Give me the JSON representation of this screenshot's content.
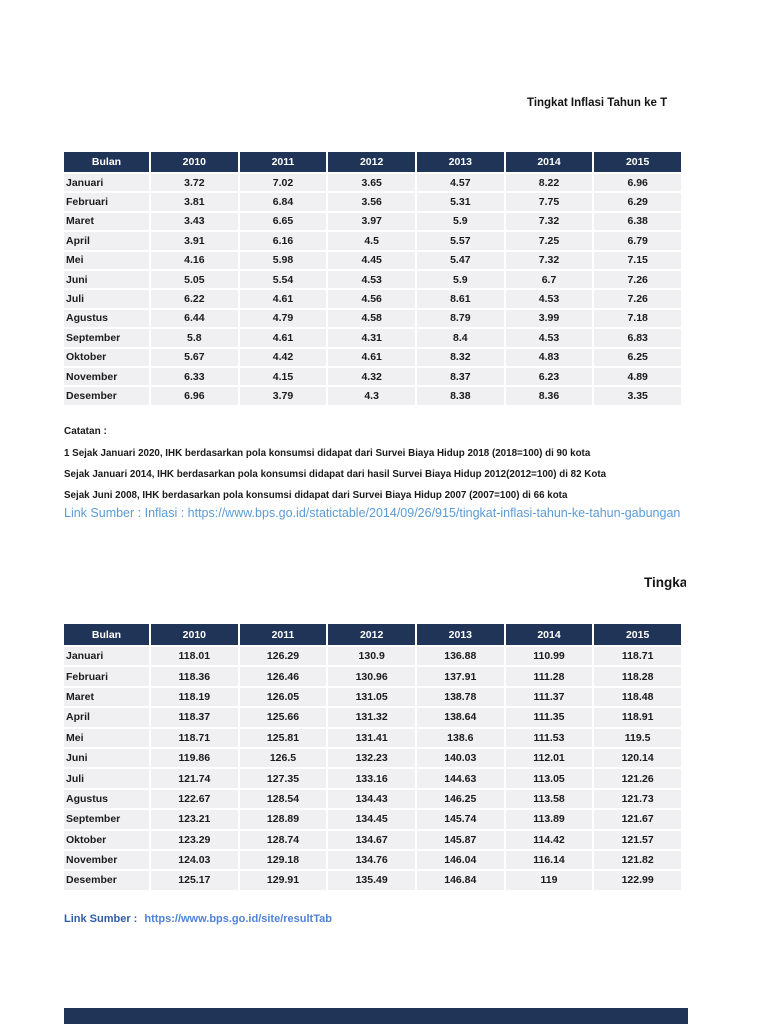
{
  "page": {
    "title_inflation": "Tingkat Inflasi Tahun ke T",
    "title_ihk_partial": "Tingka"
  },
  "colors": {
    "header_navy": "#1F3456",
    "cell_gray": "#F0F0F2",
    "link_light_blue": "#5B9BD5",
    "link_label_blue": "#2E5CA6",
    "link_url_blue": "#4F82D9"
  },
  "inflation_table": {
    "columns": [
      "Bulan",
      "2010",
      "2011",
      "2012",
      "2013",
      "2014",
      "2015"
    ],
    "rows": [
      {
        "month": "Januari",
        "values": [
          "3.72",
          "7.02",
          "3.65",
          "4.57",
          "8.22",
          "6.96"
        ]
      },
      {
        "month": "Februari",
        "values": [
          "3.81",
          "6.84",
          "3.56",
          "5.31",
          "7.75",
          "6.29"
        ]
      },
      {
        "month": "Maret",
        "values": [
          "3.43",
          "6.65",
          "3.97",
          "5.9",
          "7.32",
          "6.38"
        ]
      },
      {
        "month": "April",
        "values": [
          "3.91",
          "6.16",
          "4.5",
          "5.57",
          "7.25",
          "6.79"
        ]
      },
      {
        "month": "Mei",
        "values": [
          "4.16",
          "5.98",
          "4.45",
          "5.47",
          "7.32",
          "7.15"
        ]
      },
      {
        "month": "Juni",
        "values": [
          "5.05",
          "5.54",
          "4.53",
          "5.9",
          "6.7",
          "7.26"
        ]
      },
      {
        "month": "Juli",
        "values": [
          "6.22",
          "4.61",
          "4.56",
          "8.61",
          "4.53",
          "7.26"
        ]
      },
      {
        "month": "Agustus",
        "values": [
          "6.44",
          "4.79",
          "4.58",
          "8.79",
          "3.99",
          "7.18"
        ]
      },
      {
        "month": "September",
        "values": [
          "5.8",
          "4.61",
          "4.31",
          "8.4",
          "4.53",
          "6.83"
        ]
      },
      {
        "month": "Oktober",
        "values": [
          "5.67",
          "4.42",
          "4.61",
          "8.32",
          "4.83",
          "6.25"
        ]
      },
      {
        "month": "November",
        "values": [
          "6.33",
          "4.15",
          "4.32",
          "8.37",
          "6.23",
          "4.89"
        ]
      },
      {
        "month": "Desember",
        "values": [
          "6.96",
          "3.79",
          "4.3",
          "8.38",
          "8.36",
          "3.35"
        ]
      }
    ]
  },
  "notes": {
    "heading": "Catatan :",
    "lines": [
      "1 Sejak Januari 2020, IHK berdasarkan pola konsumsi didapat dari Survei Biaya Hidup 2018 (2018=100) di 90 kota",
      "Sejak Januari 2014, IHK berdasarkan pola konsumsi didapat dari hasil Survei Biaya Hidup 2012(2012=100) di 82 Kota",
      "Sejak Juni 2008, IHK berdasarkan pola konsumsi didapat dari Survei Biaya Hidup 2007 (2007=100) di 66 kota"
    ]
  },
  "links": {
    "inflation_source": "Link Sumber : Inflasi : https://www.bps.go.id/statictable/2014/09/26/915/tingkat-inflasi-tahun-ke-tahun-gabungan",
    "ihk_source_label": "Link Sumber :",
    "ihk_source_url": "https://www.bps.go.id/site/resultTab"
  },
  "ihk_table": {
    "columns": [
      "Bulan",
      "2010",
      "2011",
      "2012",
      "2013",
      "2014",
      "2015"
    ],
    "rows": [
      {
        "month": "Januari",
        "values": [
          "118.01",
          "126.29",
          "130.9",
          "136.88",
          "110.99",
          "118.71"
        ]
      },
      {
        "month": "Februari",
        "values": [
          "118.36",
          "126.46",
          "130.96",
          "137.91",
          "111.28",
          "118.28"
        ]
      },
      {
        "month": "Maret",
        "values": [
          "118.19",
          "126.05",
          "131.05",
          "138.78",
          "111.37",
          "118.48"
        ]
      },
      {
        "month": "April",
        "values": [
          "118.37",
          "125.66",
          "131.32",
          "138.64",
          "111.35",
          "118.91"
        ]
      },
      {
        "month": "Mei",
        "values": [
          "118.71",
          "125.81",
          "131.41",
          "138.6",
          "111.53",
          "119.5"
        ]
      },
      {
        "month": "Juni",
        "values": [
          "119.86",
          "126.5",
          "132.23",
          "140.03",
          "112.01",
          "120.14"
        ]
      },
      {
        "month": "Juli",
        "values": [
          "121.74",
          "127.35",
          "133.16",
          "144.63",
          "113.05",
          "121.26"
        ]
      },
      {
        "month": "Agustus",
        "values": [
          "122.67",
          "128.54",
          "134.43",
          "146.25",
          "113.58",
          "121.73"
        ]
      },
      {
        "month": "September",
        "values": [
          "123.21",
          "128.89",
          "134.45",
          "145.74",
          "113.89",
          "121.67"
        ]
      },
      {
        "month": "Oktober",
        "values": [
          "123.29",
          "128.74",
          "134.67",
          "145.87",
          "114.42",
          "121.57"
        ]
      },
      {
        "month": "November",
        "values": [
          "124.03",
          "129.18",
          "134.76",
          "146.04",
          "116.14",
          "121.82"
        ]
      },
      {
        "month": "Desember",
        "values": [
          "125.17",
          "129.91",
          "135.49",
          "146.84",
          "119",
          "122.99"
        ]
      }
    ]
  }
}
